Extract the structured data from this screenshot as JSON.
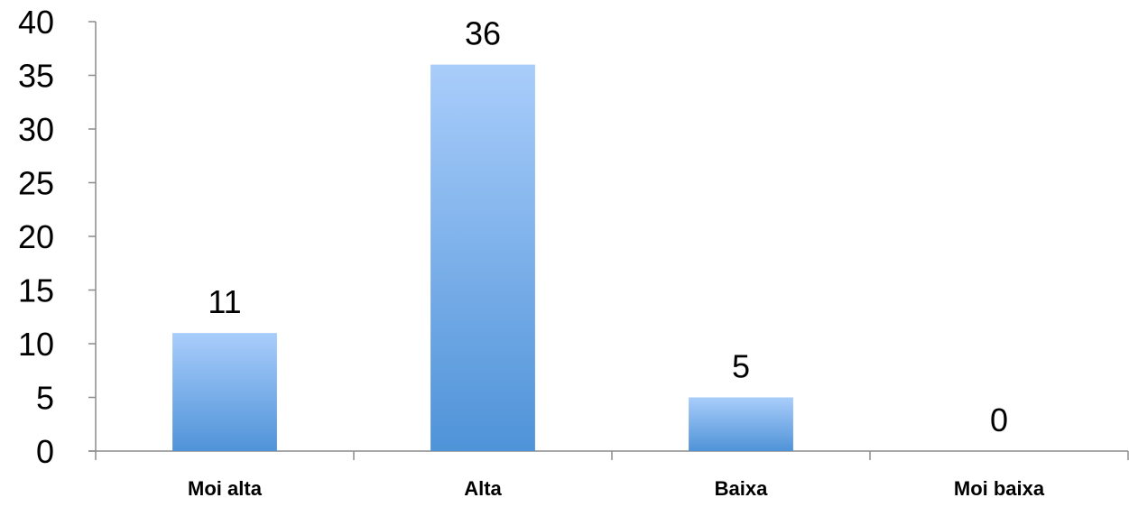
{
  "chart_data": {
    "type": "bar",
    "categories": [
      "Moi alta",
      "Alta",
      "Baixa",
      "Moi baixa"
    ],
    "values": [
      11,
      36,
      5,
      0
    ],
    "data_labels": [
      "11",
      "36",
      "5",
      "0"
    ],
    "title": "",
    "xlabel": "",
    "ylabel": "",
    "ylim": [
      0,
      40
    ],
    "yticks": [
      0,
      5,
      10,
      15,
      20,
      25,
      30,
      35,
      40
    ],
    "ytick_labels": [
      "0",
      "5",
      "10",
      "15",
      "20",
      "25",
      "30",
      "35",
      "40"
    ],
    "grid": false,
    "legend": "none",
    "colors": {
      "bar_top": "#a9cdfb",
      "bar_bottom": "#4f93d8",
      "axis": "#8c8c8c",
      "text": "#000000"
    }
  }
}
